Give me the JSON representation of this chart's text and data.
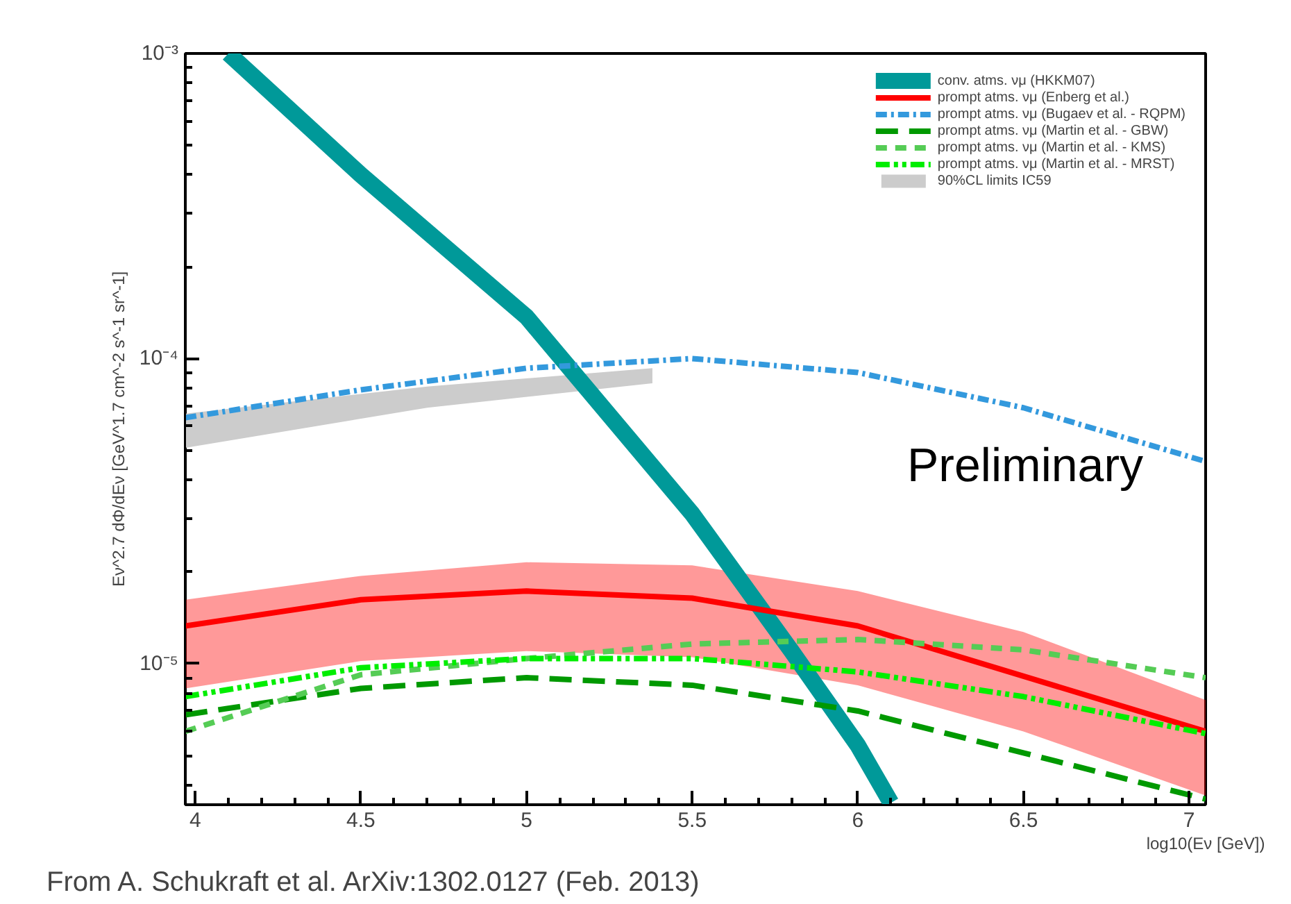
{
  "chart_data": {
    "type": "line",
    "xlabel": "log10(Eν [GeV])",
    "ylabel": "Eν^2.7 dΦ/dEν [GeV^1.7 cm^-2 s^-1 sr^-1]",
    "annotations": [
      "Preliminary",
      "From A. Schukraft et al. ArXiv:1302.0127 (Feb. 2013)"
    ],
    "log": "y",
    "xlim": [
      3.97,
      7.05
    ],
    "ylim": [
      3.45e-06,
      0.001
    ],
    "xticks": [
      4,
      4.5,
      5,
      5.5,
      6,
      6.5,
      7
    ],
    "yticks": [
      {
        "value": 1e-05,
        "label": "10⁻⁵"
      },
      {
        "value": 0.0001,
        "label": "10⁻⁴"
      },
      {
        "value": 0.001,
        "label": "10⁻³"
      }
    ],
    "grid": false,
    "legend": "top right",
    "marker": "none",
    "series": [
      {
        "name": "conv. atms. νμ (HKKM07)",
        "color": "#009999",
        "line_style": "solid",
        "x": [
          4.1,
          4.5,
          5.0,
          5.5,
          5.8,
          6.0,
          6.1
        ],
        "values": [
          0.001,
          0.0004,
          0.000137,
          3.1e-05,
          1.1e-05,
          5.4e-06,
          3.5e-06
        ]
      },
      {
        "name": "prompt atms. νμ (Enberg et al.)",
        "color": "#ff0000",
        "line_style": "solid",
        "x": [
          3.97,
          4.5,
          5.0,
          5.5,
          6.0,
          6.5,
          7.05
        ],
        "values": [
          1.33e-05,
          1.62e-05,
          1.73e-05,
          1.64e-05,
          1.33e-05,
          9.1e-06,
          6e-06
        ],
        "lower": [
          8.3e-06,
          1.02e-05,
          1.1e-05,
          1.05e-05,
          8.5e-06,
          6e-06,
          3.7e-06
        ],
        "upper": [
          1.62e-05,
          1.94e-05,
          2.15e-05,
          2.1e-05,
          1.73e-05,
          1.27e-05,
          7.6e-06
        ]
      },
      {
        "name": "prompt atms. νμ (Bugaev et al. - RQPM)",
        "color": "#3399dd",
        "line_style": "dashdot",
        "x": [
          3.97,
          4.5,
          5.0,
          5.5,
          6.0,
          6.5,
          7.05
        ],
        "values": [
          6.4e-05,
          7.9e-05,
          9.3e-05,
          0.0001,
          9e-05,
          6.9e-05,
          4.6e-05
        ]
      },
      {
        "name": "prompt atms. νμ (Martin et al. - GBW)",
        "color": "#009900",
        "line_style": "dashed",
        "x": [
          3.97,
          4.5,
          5.0,
          5.5,
          6.0,
          6.5,
          7.05
        ],
        "values": [
          6.8e-06,
          8.3e-06,
          9e-06,
          8.5e-06,
          7e-06,
          5.1e-06,
          3.6e-06
        ]
      },
      {
        "name": "prompt atms. νμ (Martin et al. - KMS)",
        "color": "#55cc55",
        "line_style": "dotted",
        "x": [
          3.97,
          4.5,
          5.0,
          5.5,
          6.0,
          6.5,
          7.05
        ],
        "values": [
          6e-06,
          9.2e-06,
          1.04e-05,
          1.16e-05,
          1.2e-05,
          1.11e-05,
          9e-06
        ]
      },
      {
        "name": "prompt atms. νμ (Martin et al. - MRST)",
        "color": "#00ee00",
        "line_style": "dashdotdot",
        "x": [
          3.97,
          4.5,
          5.0,
          5.5,
          6.0,
          6.5,
          7.05
        ],
        "values": [
          7.8e-06,
          9.7e-06,
          1.04e-05,
          1.04e-05,
          9.4e-06,
          7.8e-06,
          5.9e-06
        ]
      },
      {
        "name": "90%CL limits IC59",
        "color": "#cccccc",
        "x": [
          3.97,
          4.7,
          5.38
        ],
        "values": [
          null,
          null,
          null
        ],
        "lower": [
          5.1e-05,
          6.9e-05,
          8.3e-05
        ],
        "upper": [
          6.6e-05,
          8.1e-05,
          9.3e-05
        ]
      }
    ]
  }
}
